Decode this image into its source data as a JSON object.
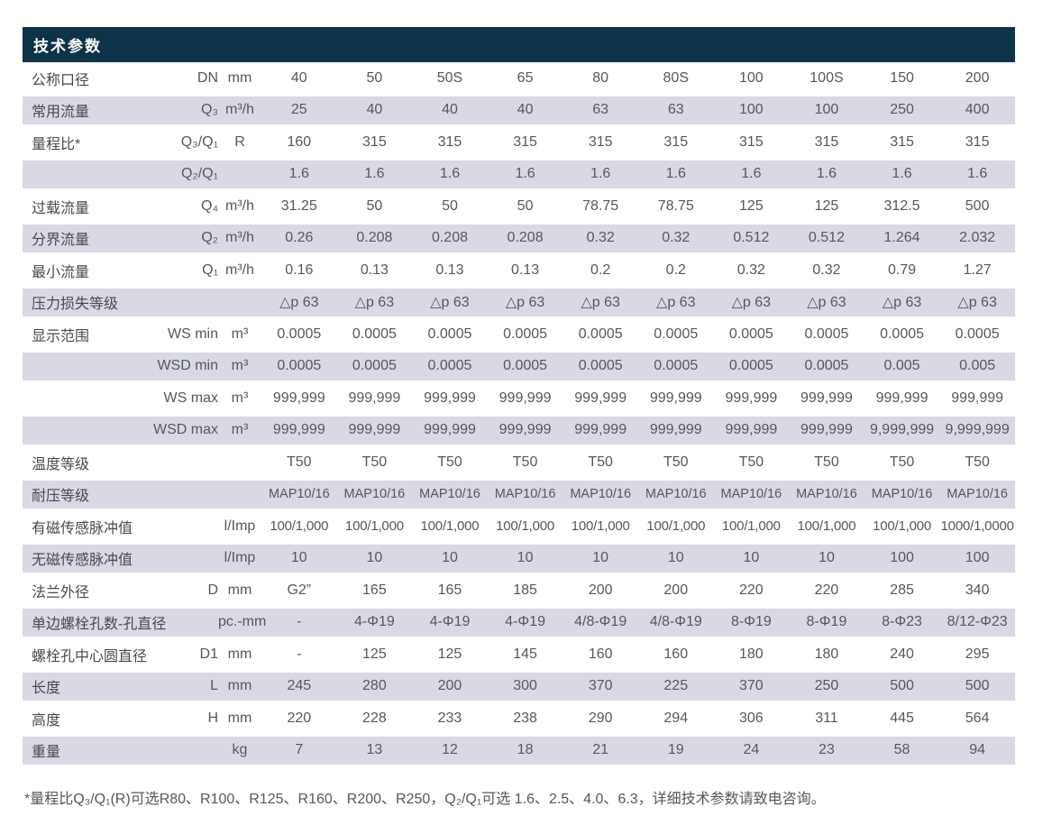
{
  "title": "技术参数",
  "footnote": "*量程比Q₃/Q₁(R)可选R80、R100、R125、R160、R200、R250，Q₂/Q₁可选 1.6、2.5、4.0、6.3，详细技术参数请致电咨询。",
  "colors": {
    "header_bg": "#0d3349",
    "header_text": "#ffffff",
    "row_alt_bg": "#d8d9e2",
    "label_text": "#48494f",
    "value_text": "#56575e"
  },
  "table": {
    "rows": [
      {
        "label": "公称口径",
        "symbol": "DN",
        "unit": "mm",
        "values": [
          "40",
          "50",
          "50S",
          "65",
          "80",
          "80S",
          "100",
          "100S",
          "150",
          "200"
        ]
      },
      {
        "label": "常用流量",
        "symbol": "Q₃",
        "unit": "m³/h",
        "values": [
          "25",
          "40",
          "40",
          "40",
          "63",
          "63",
          "100",
          "100",
          "250",
          "400"
        ]
      },
      {
        "label": "量程比*",
        "symbol": "Q₃/Q₁",
        "unit": "R",
        "values": [
          "160",
          "315",
          "315",
          "315",
          "315",
          "315",
          "315",
          "315",
          "315",
          "315"
        ]
      },
      {
        "label": "",
        "symbol": "Q₂/Q₁",
        "unit": "",
        "values": [
          "1.6",
          "1.6",
          "1.6",
          "1.6",
          "1.6",
          "1.6",
          "1.6",
          "1.6",
          "1.6",
          "1.6"
        ]
      },
      {
        "label": "过载流量",
        "symbol": "Q₄",
        "unit": "m³/h",
        "values": [
          "31.25",
          "50",
          "50",
          "50",
          "78.75",
          "78.75",
          "125",
          "125",
          "312.5",
          "500"
        ]
      },
      {
        "label": "分界流量",
        "symbol": "Q₂",
        "unit": "m³/h",
        "values": [
          "0.26",
          "0.208",
          "0.208",
          "0.208",
          "0.32",
          "0.32",
          "0.512",
          "0.512",
          "1.264",
          "2.032"
        ]
      },
      {
        "label": "最小流量",
        "symbol": "Q₁",
        "unit": "m³/h",
        "values": [
          "0.16",
          "0.13",
          "0.13",
          "0.13",
          "0.2",
          "0.2",
          "0.32",
          "0.32",
          "0.79",
          "1.27"
        ]
      },
      {
        "label": "压力损失等级",
        "symbol": "",
        "unit": "",
        "values": [
          "△p 63",
          "△p 63",
          "△p 63",
          "△p 63",
          "△p 63",
          "△p 63",
          "△p 63",
          "△p 63",
          "△p 63",
          "△p 63"
        ]
      },
      {
        "label": "显示范围",
        "symbol": "WS min",
        "unit": "m³",
        "values": [
          "0.0005",
          "0.0005",
          "0.0005",
          "0.0005",
          "0.0005",
          "0.0005",
          "0.0005",
          "0.0005",
          "0.0005",
          "0.0005"
        ]
      },
      {
        "label": "",
        "symbol": "WSD min",
        "unit": "m³",
        "values": [
          "0.0005",
          "0.0005",
          "0.0005",
          "0.0005",
          "0.0005",
          "0.0005",
          "0.0005",
          "0.0005",
          "0.005",
          "0.005"
        ]
      },
      {
        "label": "",
        "symbol": "WS max",
        "unit": "m³",
        "values": [
          "999,999",
          "999,999",
          "999,999",
          "999,999",
          "999,999",
          "999,999",
          "999,999",
          "999,999",
          "999,999",
          "999,999"
        ]
      },
      {
        "label": "",
        "symbol": "WSD max",
        "unit": "m³",
        "values": [
          "999,999",
          "999,999",
          "999,999",
          "999,999",
          "999,999",
          "999,999",
          "999,999",
          "999,999",
          "9,999,999",
          "9,999,999"
        ]
      },
      {
        "label": "温度等级",
        "symbol": "",
        "unit": "",
        "values": [
          "T50",
          "T50",
          "T50",
          "T50",
          "T50",
          "T50",
          "T50",
          "T50",
          "T50",
          "T50"
        ]
      },
      {
        "label": "耐压等级",
        "symbol": "",
        "unit": "",
        "values": [
          "MAP10/16",
          "MAP10/16",
          "MAP10/16",
          "MAP10/16",
          "MAP10/16",
          "MAP10/16",
          "MAP10/16",
          "MAP10/16",
          "MAP10/16",
          "MAP10/16"
        ]
      },
      {
        "label": "有磁传感脉冲值",
        "symbol": "",
        "unit": "l/Imp",
        "values": [
          "100/1,000",
          "100/1,000",
          "100/1,000",
          "100/1,000",
          "100/1,000",
          "100/1,000",
          "100/1,000",
          "100/1,000",
          "100/1,000",
          "1000/1,0000"
        ]
      },
      {
        "label": "无磁传感脉冲值",
        "symbol": "",
        "unit": "l/Imp",
        "values": [
          "10",
          "10",
          "10",
          "10",
          "10",
          "10",
          "10",
          "10",
          "100",
          "100"
        ]
      },
      {
        "label": "法兰外径",
        "symbol": "D",
        "unit": "mm",
        "values": [
          "G2”",
          "165",
          "165",
          "185",
          "200",
          "200",
          "220",
          "220",
          "285",
          "340"
        ]
      },
      {
        "label": "单边螺栓孔数-孔直径",
        "symbol": "",
        "unit": "pc.-mm",
        "values": [
          "-",
          "4-Φ19",
          "4-Φ19",
          "4-Φ19",
          "4/8-Φ19",
          "4/8-Φ19",
          "8-Φ19",
          "8-Φ19",
          "8-Φ23",
          "8/12-Φ23"
        ]
      },
      {
        "label": "螺栓孔中心圆直径",
        "symbol": "D1",
        "unit": "mm",
        "values": [
          "-",
          "125",
          "125",
          "145",
          "160",
          "160",
          "180",
          "180",
          "240",
          "295"
        ]
      },
      {
        "label": "长度",
        "symbol": "L",
        "unit": "mm",
        "values": [
          "245",
          "280",
          "200",
          "300",
          "370",
          "225",
          "370",
          "250",
          "500",
          "500"
        ]
      },
      {
        "label": "高度",
        "symbol": "H",
        "unit": "mm",
        "values": [
          "220",
          "228",
          "233",
          "238",
          "290",
          "294",
          "306",
          "311",
          "445",
          "564"
        ]
      },
      {
        "label": "重量",
        "symbol": "",
        "unit": "kg",
        "values": [
          "7",
          "13",
          "12",
          "18",
          "21",
          "19",
          "24",
          "23",
          "58",
          "94"
        ]
      }
    ]
  }
}
